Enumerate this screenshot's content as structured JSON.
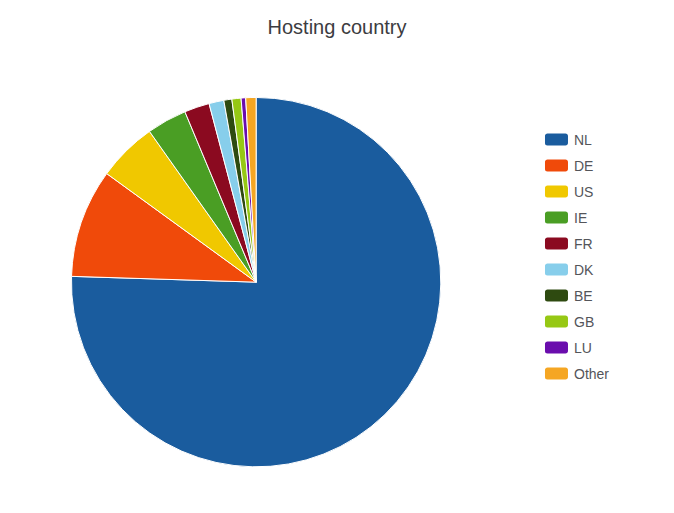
{
  "chart_data": {
    "type": "pie",
    "title": "Hosting country",
    "categories": [
      "NL",
      "DE",
      "US",
      "IE",
      "FR",
      "DK",
      "BE",
      "GB",
      "LU",
      "Other"
    ],
    "values": [
      75.5,
      9.5,
      5.2,
      3.5,
      2.2,
      1.3,
      0.7,
      0.8,
      0.4,
      0.9
    ],
    "colors": [
      "#1a5c9e",
      "#f04a0a",
      "#f0c800",
      "#4a9e24",
      "#8b0a20",
      "#87ceeb",
      "#2e4a10",
      "#96c814",
      "#6a0dad",
      "#f5a623"
    ],
    "legend": "right"
  }
}
